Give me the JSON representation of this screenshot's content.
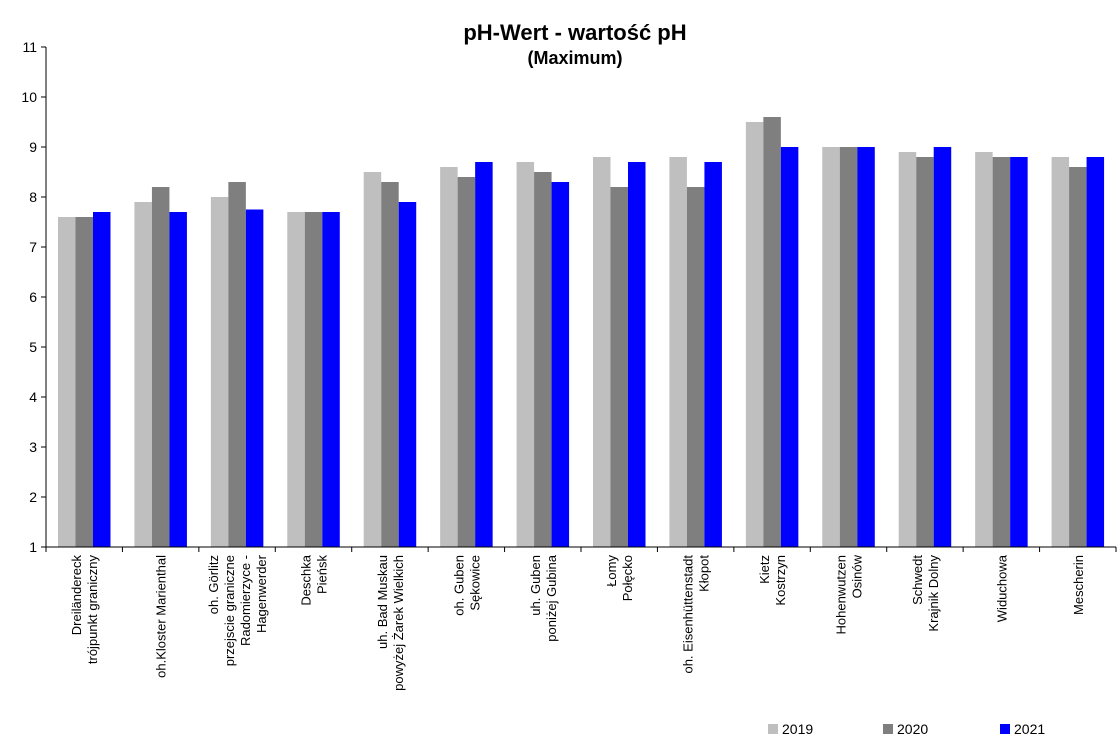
{
  "chart_data": {
    "type": "bar",
    "title": "pH-Wert - wartość pH",
    "subtitle": "(Maximum)",
    "xlabel": "",
    "ylabel": "",
    "ylim": [
      1,
      11
    ],
    "yticks": [
      1,
      2,
      3,
      4,
      5,
      6,
      7,
      8,
      9,
      10,
      11
    ],
    "grid": false,
    "legend_position": "bottom-right",
    "categories": [
      [
        "Dreiländereck",
        "trójpunkt graniczny"
      ],
      [
        "oh.Kloster Marienthal"
      ],
      [
        "oh. Görlitz",
        "przejscie graniczne",
        "Radomierzyce -",
        "Hagenwerder"
      ],
      [
        "Deschka",
        "Pieńsk"
      ],
      [
        "uh. Bad Muskau",
        "powyżej Żarek Wielkich"
      ],
      [
        "oh. Guben",
        "Sękowice"
      ],
      [
        "uh. Guben",
        "poniżej Gubina"
      ],
      [
        "Łomy",
        "Połęcko"
      ],
      [
        "oh. Eisenhüttenstadt",
        "Kłopot"
      ],
      [
        "Kietz",
        "Kostrzyn"
      ],
      [
        "Hohenwutzen",
        "Osinów"
      ],
      [
        "Schwedt",
        "Krajnik Dolny"
      ],
      [
        "Widuchowa"
      ],
      [
        "Mescherin"
      ]
    ],
    "series": [
      {
        "name": "2019",
        "color": "#bfbfbf",
        "values": [
          7.6,
          7.9,
          8.0,
          7.7,
          8.5,
          8.6,
          8.7,
          8.8,
          8.8,
          9.5,
          9.0,
          8.9,
          8.9,
          8.8
        ]
      },
      {
        "name": "2020",
        "color": "#7f7f7f",
        "values": [
          7.6,
          8.2,
          8.3,
          7.7,
          8.3,
          8.4,
          8.5,
          8.2,
          8.2,
          9.6,
          9.0,
          8.8,
          8.8,
          8.6
        ]
      },
      {
        "name": "2021",
        "color": "#0000ff",
        "values": [
          7.7,
          7.7,
          7.75,
          7.7,
          7.9,
          8.7,
          8.3,
          8.7,
          8.7,
          9.0,
          9.0,
          9.0,
          8.8,
          8.8
        ]
      }
    ]
  }
}
